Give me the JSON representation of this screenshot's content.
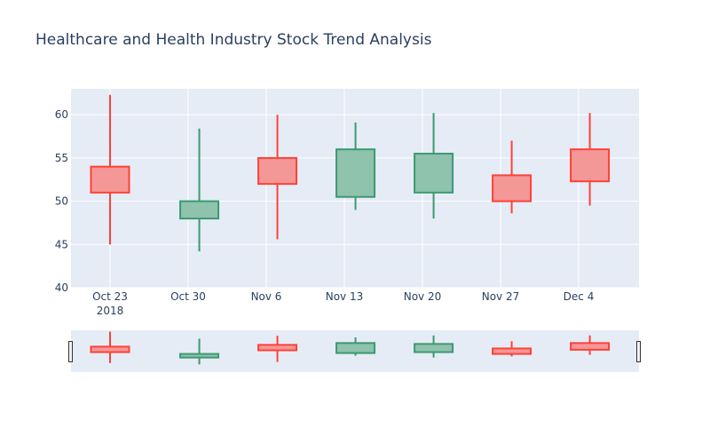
{
  "chart_data": {
    "type": "candlestick",
    "title": "Healthcare and Health Industry Stock Trend Analysis",
    "xlabel": "",
    "ylabel": "",
    "ylim": [
      40,
      63
    ],
    "y_ticks": [
      "40",
      "45",
      "50",
      "55",
      "60"
    ],
    "x_tick_labels": [
      "Oct 23",
      "Oct 30",
      "Nov 6",
      "Nov 13",
      "Nov 20",
      "Nov 27",
      "Dec 4"
    ],
    "x_year_label": "2018",
    "grid": true,
    "range_slider": true,
    "colors": {
      "increasing_line": "#3d9970",
      "increasing_fill": "#8fc3ae",
      "decreasing_line": "#ff4136",
      "decreasing_fill": "#f49797",
      "plot_background": "#e5ecf6",
      "grid": "#ffffff",
      "text": "#2a3f5f"
    },
    "candles": [
      {
        "date": "2018-10-23",
        "open": 54,
        "high": 62.3,
        "low": 45,
        "close": 51,
        "direction": "decreasing"
      },
      {
        "date": "2018-10-31",
        "open": 48,
        "high": 58.4,
        "low": 44.2,
        "close": 50,
        "direction": "increasing"
      },
      {
        "date": "2018-11-07",
        "open": 55,
        "high": 60,
        "low": 45.6,
        "close": 52,
        "direction": "decreasing"
      },
      {
        "date": "2018-11-14",
        "open": 50.5,
        "high": 59.1,
        "low": 49,
        "close": 56,
        "direction": "increasing"
      },
      {
        "date": "2018-11-21",
        "open": 51,
        "high": 60.2,
        "low": 48,
        "close": 55.5,
        "direction": "increasing"
      },
      {
        "date": "2018-11-28",
        "open": 53,
        "high": 57,
        "low": 48.6,
        "close": 50,
        "direction": "decreasing"
      },
      {
        "date": "2018-12-05",
        "open": 56,
        "high": 60.2,
        "low": 49.5,
        "close": 52.3,
        "direction": "decreasing"
      }
    ]
  }
}
